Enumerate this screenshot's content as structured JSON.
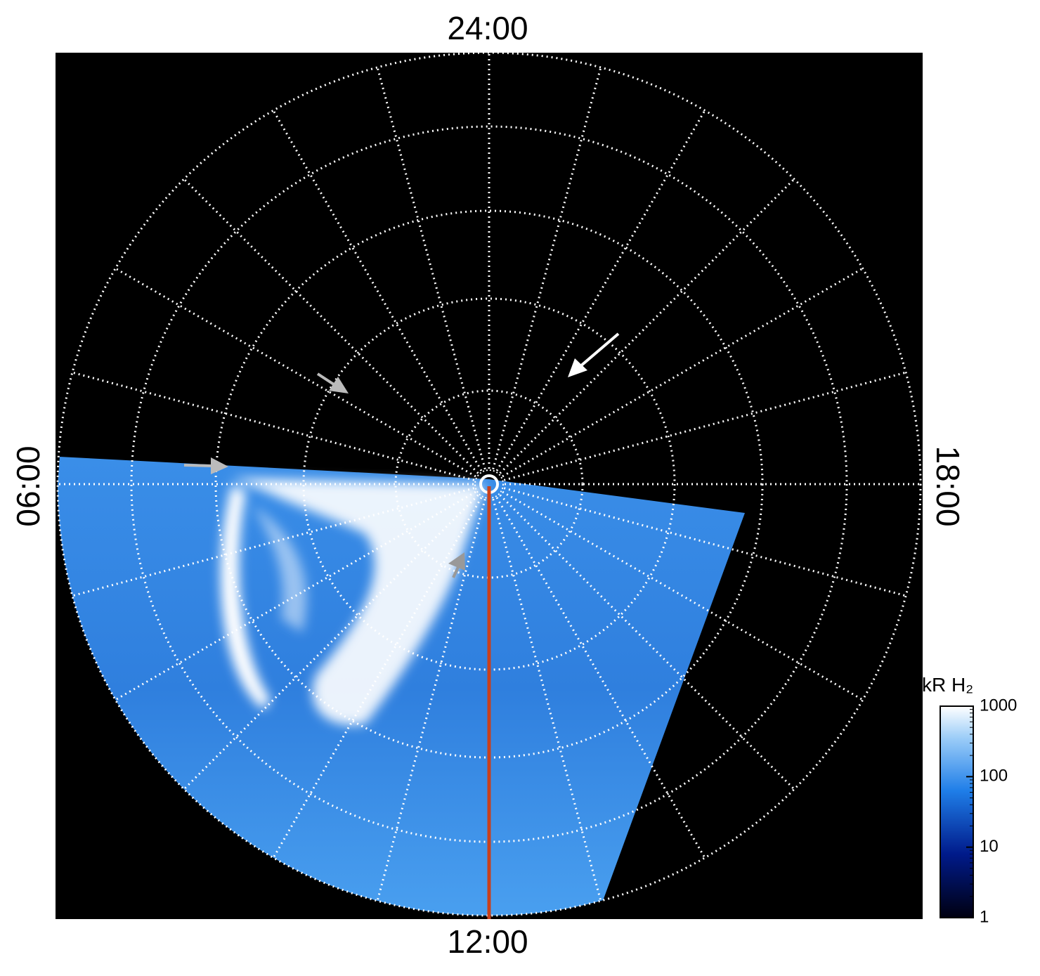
{
  "time_labels": {
    "top": "24:00",
    "bottom": "12:00",
    "left": "06:00",
    "right": "18:00"
  },
  "colorbar": {
    "label": "kR H₂",
    "lim": [
      1,
      1000
    ],
    "ticks": [
      1,
      10,
      100,
      1000
    ],
    "log": true
  }
}
